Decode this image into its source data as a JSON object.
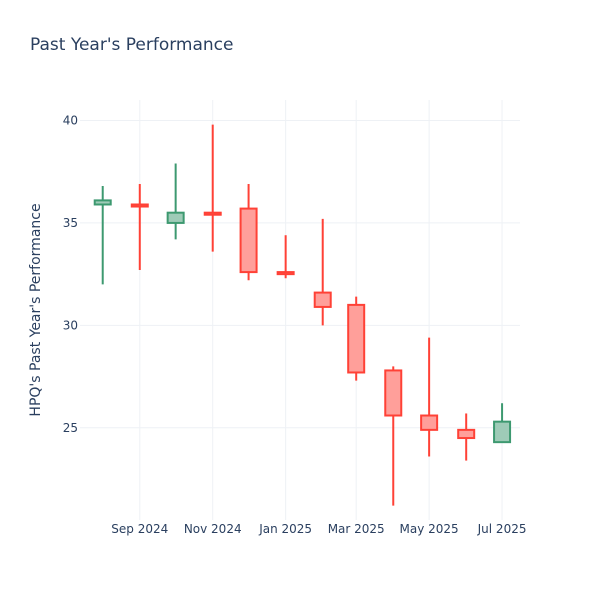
{
  "chart_data": {
    "type": "candlestick",
    "title": "Past Year's Performance",
    "ylabel": "HPQ's Past Year's Performance",
    "xlabel": "",
    "ylim": [
      20.5,
      41
    ],
    "y_ticks": [
      25,
      30,
      35,
      40
    ],
    "x_ticks": [
      {
        "label": "Sep 2024",
        "date": "2024-09-01"
      },
      {
        "label": "Nov 2024",
        "date": "2024-11-01"
      },
      {
        "label": "Jan 2025",
        "date": "2025-01-01"
      },
      {
        "label": "Mar 2025",
        "date": "2025-03-01"
      },
      {
        "label": "May 2025",
        "date": "2025-05-01"
      },
      {
        "label": "Jul 2025",
        "date": "2025-07-01"
      }
    ],
    "x_range": [
      "2024-07-13",
      "2025-07-16"
    ],
    "grid": true,
    "colors": {
      "increasing_line": "#3d9970",
      "increasing_fill": "#9ecbb7",
      "decreasing_line": "#ff4136",
      "decreasing_fill": "#ff9f9a"
    },
    "candles": [
      {
        "date": "2024-08-01",
        "open": 35.9,
        "high": 36.8,
        "low": 32.0,
        "close": 36.1
      },
      {
        "date": "2024-09-01",
        "open": 35.9,
        "high": 36.9,
        "low": 32.7,
        "close": 35.8
      },
      {
        "date": "2024-10-01",
        "open": 35.0,
        "high": 37.9,
        "low": 34.2,
        "close": 35.5
      },
      {
        "date": "2024-11-01",
        "open": 35.5,
        "high": 39.8,
        "low": 33.6,
        "close": 35.4
      },
      {
        "date": "2024-12-01",
        "open": 35.7,
        "high": 36.9,
        "low": 32.2,
        "close": 32.6
      },
      {
        "date": "2025-01-01",
        "open": 32.6,
        "high": 34.4,
        "low": 32.3,
        "close": 32.5
      },
      {
        "date": "2025-02-01",
        "open": 31.6,
        "high": 35.2,
        "low": 30.0,
        "close": 30.9
      },
      {
        "date": "2025-03-01",
        "open": 31.0,
        "high": 31.4,
        "low": 27.3,
        "close": 27.7
      },
      {
        "date": "2025-04-01",
        "open": 27.8,
        "high": 28.0,
        "low": 21.2,
        "close": 25.6
      },
      {
        "date": "2025-05-01",
        "open": 25.6,
        "high": 29.4,
        "low": 23.6,
        "close": 24.9
      },
      {
        "date": "2025-06-01",
        "open": 24.9,
        "high": 25.7,
        "low": 23.4,
        "close": 24.5
      },
      {
        "date": "2025-07-01",
        "open": 24.3,
        "high": 26.2,
        "low": 24.3,
        "close": 25.3
      }
    ]
  }
}
